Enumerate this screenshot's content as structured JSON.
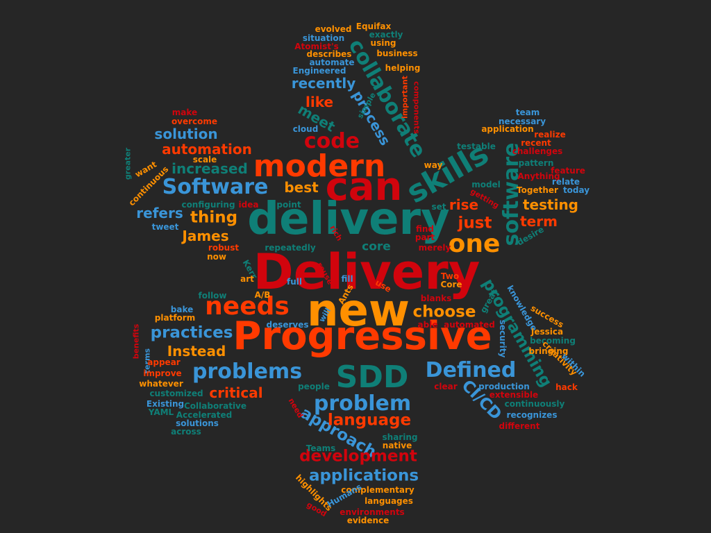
{
  "palette": {
    "background": "#262626",
    "red": "#d1040d",
    "orange_red": "#ff3a00",
    "orange": "#ff9000",
    "teal": "#0f7f77",
    "blue": "#3a95d8"
  },
  "words": [
    {
      "text": "Delivery",
      "color": "#d1040d"
    },
    {
      "text": "delivery",
      "color": "#0f7f77"
    },
    {
      "text": "Progressive",
      "color": "#ff3a00"
    },
    {
      "text": "new",
      "color": "#ff9000"
    },
    {
      "text": "can",
      "color": "#d1040d"
    },
    {
      "text": "modern",
      "color": "#ff3a00"
    },
    {
      "text": "SDD",
      "color": "#0f7f77"
    },
    {
      "text": "skills",
      "color": "#0f7f77"
    },
    {
      "text": "software",
      "color": "#0f7f77"
    },
    {
      "text": "Software",
      "color": "#3a95d8"
    },
    {
      "text": "needs",
      "color": "#ff3a00"
    },
    {
      "text": "one",
      "color": "#ff9000"
    },
    {
      "text": "Defined",
      "color": "#3a95d8"
    },
    {
      "text": "problems",
      "color": "#3a95d8"
    },
    {
      "text": "problem",
      "color": "#3a95d8"
    },
    {
      "text": "code",
      "color": "#d1040d"
    },
    {
      "text": "collaborate",
      "color": "#0f7f77"
    },
    {
      "text": "programming",
      "color": "#0f7f77"
    },
    {
      "text": "choose",
      "color": "#ff9000"
    },
    {
      "text": "CI/CD",
      "color": "#3a95d8"
    },
    {
      "text": "approach",
      "color": "#3a95d8"
    },
    {
      "text": "applications",
      "color": "#3a95d8"
    },
    {
      "text": "development",
      "color": "#d1040d"
    },
    {
      "text": "language",
      "color": "#ff3a00"
    },
    {
      "text": "practices",
      "color": "#3a95d8"
    },
    {
      "text": "Instead",
      "color": "#ff9000"
    },
    {
      "text": "critical",
      "color": "#ff3a00"
    },
    {
      "text": "testing",
      "color": "#ff9000"
    },
    {
      "text": "term",
      "color": "#ff3a00"
    },
    {
      "text": "rise",
      "color": "#ff3a00"
    },
    {
      "text": "just",
      "color": "#ff3a00"
    },
    {
      "text": "core",
      "color": "#0f7f77"
    },
    {
      "text": "thing",
      "color": "#ff9000"
    },
    {
      "text": "James",
      "color": "#ff9000"
    },
    {
      "text": "refers",
      "color": "#3a95d8"
    },
    {
      "text": "best",
      "color": "#ff9000"
    },
    {
      "text": "increased",
      "color": "#0f7f77"
    },
    {
      "text": "automation",
      "color": "#ff3a00"
    },
    {
      "text": "solution",
      "color": "#3a95d8"
    },
    {
      "text": "recently",
      "color": "#3a95d8"
    },
    {
      "text": "like",
      "color": "#ff3a00"
    },
    {
      "text": "meet",
      "color": "#0f7f77"
    },
    {
      "text": "process",
      "color": "#3a95d8"
    },
    {
      "text": "evolved",
      "color": "#ff9000"
    },
    {
      "text": "Equifax",
      "color": "#ff9000"
    },
    {
      "text": "situation",
      "color": "#3a95d8"
    },
    {
      "text": "exactly",
      "color": "#0f7f77"
    },
    {
      "text": "Atomist's",
      "color": "#d1040d"
    },
    {
      "text": "using",
      "color": "#ff9000"
    },
    {
      "text": "describes",
      "color": "#ff9000"
    },
    {
      "text": "business",
      "color": "#ff9000"
    },
    {
      "text": "automate",
      "color": "#3a95d8"
    },
    {
      "text": "Engineered",
      "color": "#3a95d8"
    },
    {
      "text": "helping",
      "color": "#ff9000"
    },
    {
      "text": "important",
      "color": "#ff3a00"
    },
    {
      "text": "components",
      "color": "#d1040d"
    },
    {
      "text": "simple",
      "color": "#0f7f77"
    },
    {
      "text": "cloud",
      "color": "#3a95d8"
    },
    {
      "text": "make",
      "color": "#d1040d"
    },
    {
      "text": "overcome",
      "color": "#ff3a00"
    },
    {
      "text": "team",
      "color": "#3a95d8"
    },
    {
      "text": "necessary",
      "color": "#3a95d8"
    },
    {
      "text": "application",
      "color": "#ff9000"
    },
    {
      "text": "realize",
      "color": "#ff3a00"
    },
    {
      "text": "testable",
      "color": "#0f7f77"
    },
    {
      "text": "recent",
      "color": "#ff3a00"
    },
    {
      "text": "challenges",
      "color": "#d1040d"
    },
    {
      "text": "way",
      "color": "#ff9000"
    },
    {
      "text": "scale",
      "color": "#ff9000"
    },
    {
      "text": "greater",
      "color": "#0f7f77"
    },
    {
      "text": "want",
      "color": "#ff9000"
    },
    {
      "text": "continuous",
      "color": "#ff9000"
    },
    {
      "text": "feature",
      "color": "#d1040d"
    },
    {
      "text": "pattern",
      "color": "#0f7f77"
    },
    {
      "text": "Anything",
      "color": "#d1040d"
    },
    {
      "text": "relate",
      "color": "#3a95d8"
    },
    {
      "text": "model",
      "color": "#0f7f77"
    },
    {
      "text": "Together",
      "color": "#ff9000"
    },
    {
      "text": "today",
      "color": "#3a95d8"
    },
    {
      "text": "getting",
      "color": "#d1040d"
    },
    {
      "text": "configuring",
      "color": "#0f7f77"
    },
    {
      "text": "idea",
      "color": "#d1040d"
    },
    {
      "text": "point",
      "color": "#0f7f77"
    },
    {
      "text": "set",
      "color": "#0f7f77"
    },
    {
      "text": "tweet",
      "color": "#3a95d8"
    },
    {
      "text": "desire",
      "color": "#0f7f77"
    },
    {
      "text": "rich",
      "color": "#d1040d"
    },
    {
      "text": "find",
      "color": "#d1040d"
    },
    {
      "text": "part",
      "color": "#d1040d"
    },
    {
      "text": "robust",
      "color": "#ff3a00"
    },
    {
      "text": "repeatedly",
      "color": "#0f7f77"
    },
    {
      "text": "merely",
      "color": "#d1040d"
    },
    {
      "text": "now",
      "color": "#ff9000"
    },
    {
      "text": "Kerr",
      "color": "#0f7f77"
    },
    {
      "text": "art",
      "color": "#ff9000"
    },
    {
      "text": "full",
      "color": "#3a95d8"
    },
    {
      "text": "reuse",
      "color": "#d1040d"
    },
    {
      "text": "fill",
      "color": "#3a95d8"
    },
    {
      "text": "Ants",
      "color": "#ff9000"
    },
    {
      "text": "use",
      "color": "#ff3a00"
    },
    {
      "text": "Two",
      "color": "#ff3a00"
    },
    {
      "text": "Core",
      "color": "#ff9000"
    },
    {
      "text": "A/B",
      "color": "#ff9000"
    },
    {
      "text": "follow",
      "color": "#0f7f77"
    },
    {
      "text": "great",
      "color": "#0f7f77"
    },
    {
      "text": "knowledge",
      "color": "#3a95d8"
    },
    {
      "text": "blanks",
      "color": "#d1040d"
    },
    {
      "text": "bake",
      "color": "#3a95d8"
    },
    {
      "text": "platform",
      "color": "#ff9000"
    },
    {
      "text": "will",
      "color": "#3a95d8"
    },
    {
      "text": "success",
      "color": "#ff9000"
    },
    {
      "text": "deserves",
      "color": "#3a95d8"
    },
    {
      "text": "able",
      "color": "#d1040d"
    },
    {
      "text": "automated",
      "color": "#d1040d"
    },
    {
      "text": "security",
      "color": "#3a95d8"
    },
    {
      "text": "Jessica",
      "color": "#ff9000"
    },
    {
      "text": "benefits",
      "color": "#d1040d"
    },
    {
      "text": "becoming",
      "color": "#0f7f77"
    },
    {
      "text": "terms",
      "color": "#3a95d8"
    },
    {
      "text": "appear",
      "color": "#ff3a00"
    },
    {
      "text": "bringing",
      "color": "#ff9000"
    },
    {
      "text": "creativity",
      "color": "#ff9000"
    },
    {
      "text": "within",
      "color": "#3a95d8"
    },
    {
      "text": "improve",
      "color": "#ff3a00"
    },
    {
      "text": "whatever",
      "color": "#ff9000"
    },
    {
      "text": "hack",
      "color": "#ff3a00"
    },
    {
      "text": "people",
      "color": "#0f7f77"
    },
    {
      "text": "clear",
      "color": "#d1040d"
    },
    {
      "text": "production",
      "color": "#3a95d8"
    },
    {
      "text": "customized",
      "color": "#0f7f77"
    },
    {
      "text": "extensible",
      "color": "#d1040d"
    },
    {
      "text": "Existing",
      "color": "#3a95d8"
    },
    {
      "text": "Collaborative",
      "color": "#0f7f77"
    },
    {
      "text": "continuously",
      "color": "#0f7f77"
    },
    {
      "text": "YAML",
      "color": "#0f7f77"
    },
    {
      "text": "Accelerated",
      "color": "#0f7f77"
    },
    {
      "text": "need",
      "color": "#d1040d"
    },
    {
      "text": "recognizes",
      "color": "#3a95d8"
    },
    {
      "text": "solutions",
      "color": "#3a95d8"
    },
    {
      "text": "different",
      "color": "#d1040d"
    },
    {
      "text": "across",
      "color": "#0f7f77"
    },
    {
      "text": "sharing",
      "color": "#0f7f77"
    },
    {
      "text": "native",
      "color": "#ff9000"
    },
    {
      "text": "Teams",
      "color": "#0f7f77"
    },
    {
      "text": "complementary",
      "color": "#ff9000"
    },
    {
      "text": "highlights",
      "color": "#ff9000"
    },
    {
      "text": "Humans",
      "color": "#3a95d8"
    },
    {
      "text": "languages",
      "color": "#ff9000"
    },
    {
      "text": "good",
      "color": "#d1040d"
    },
    {
      "text": "environments",
      "color": "#d1040d"
    },
    {
      "text": "evidence",
      "color": "#ff9000"
    }
  ]
}
